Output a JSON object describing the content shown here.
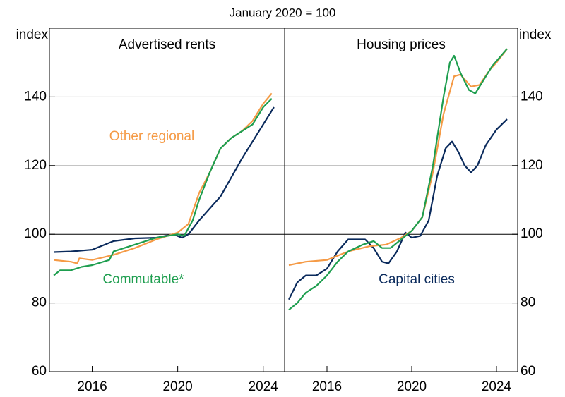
{
  "subtitle": "January 2020 = 100",
  "chart_data": [
    {
      "type": "line",
      "title": "Advertised rents",
      "ylabel": "index",
      "xlim": [
        2014,
        2025
      ],
      "xticks": [
        2016,
        2020,
        2024
      ],
      "ylim": [
        60,
        160
      ],
      "yticks": [
        60,
        80,
        100,
        120,
        140
      ],
      "grid": true,
      "baseline": 100,
      "series": [
        {
          "color": "#0a2a5c",
          "x": [
            2014.2,
            2015,
            2016,
            2017,
            2018,
            2019,
            2019.8,
            2020.2,
            2020.5,
            2021,
            2022,
            2023,
            2024,
            2024.5
          ],
          "values": [
            94.8,
            95,
            95.5,
            98,
            98.8,
            99,
            100,
            99,
            100,
            104,
            111,
            122,
            132,
            137
          ]
        },
        {
          "name": "Other regional",
          "color": "#f59a45",
          "x": [
            2014.2,
            2015,
            2015.3,
            2015.4,
            2016,
            2017,
            2018,
            2019,
            2020,
            2020.5,
            2021,
            2021.5,
            2022,
            2022.5,
            2023,
            2023.5,
            2024,
            2024.4
          ],
          "values": [
            92.5,
            92,
            91.5,
            93,
            92.5,
            94,
            96,
            98.5,
            100.5,
            103,
            112,
            118,
            125,
            128,
            130,
            133,
            138,
            141
          ]
        },
        {
          "name": "Commutable*",
          "color": "#1e9e4f",
          "x": [
            2014.2,
            2014.5,
            2015,
            2015.5,
            2016,
            2016.8,
            2017,
            2018,
            2019,
            2020,
            2020.3,
            2020.7,
            2021,
            2021.5,
            2022,
            2022.5,
            2023,
            2023.5,
            2024,
            2024.4
          ],
          "values": [
            88,
            89.5,
            89.5,
            90.5,
            91,
            92.5,
            95,
            97,
            99,
            100,
            99.5,
            104,
            110,
            118,
            125,
            128,
            130,
            132,
            137,
            139.5
          ]
        }
      ]
    },
    {
      "type": "line",
      "title": "Housing prices",
      "ylabel": "index",
      "xlim": [
        2014,
        2025
      ],
      "xticks": [
        2016,
        2020,
        2024
      ],
      "ylim": [
        60,
        160
      ],
      "yticks": [
        60,
        80,
        100,
        120,
        140
      ],
      "grid": true,
      "baseline": 100,
      "series": [
        {
          "name": "Capital cities",
          "color": "#0a2a5c",
          "x": [
            2014.2,
            2014.6,
            2015,
            2015.5,
            2016,
            2016.5,
            2017,
            2017.8,
            2018.2,
            2018.6,
            2018.9,
            2019.3,
            2019.7,
            2020,
            2020.4,
            2020.8,
            2021.2,
            2021.6,
            2021.9,
            2022.2,
            2022.5,
            2022.8,
            2023.1,
            2023.5,
            2024,
            2024.5
          ],
          "values": [
            81,
            86,
            88,
            88,
            90,
            95,
            98.5,
            98.5,
            96,
            92,
            91.5,
            95,
            100.5,
            99,
            99.5,
            104,
            117,
            125,
            127,
            124,
            120,
            118,
            120,
            126,
            130.5,
            133.5
          ]
        },
        {
          "color": "#f59a45",
          "x": [
            2014.2,
            2015,
            2016,
            2017,
            2018,
            2018.8,
            2019.5,
            2020,
            2020.5,
            2021,
            2021.5,
            2022,
            2022.3,
            2022.8,
            2023.2,
            2023.7,
            2024,
            2024.5
          ],
          "values": [
            91,
            92,
            92.5,
            95,
            96.5,
            97,
            99,
            101,
            105,
            118,
            135,
            146,
            146.5,
            143,
            143.5,
            148,
            150,
            154
          ]
        },
        {
          "color": "#1e9e4f",
          "x": [
            2014.2,
            2014.6,
            2015,
            2015.5,
            2016,
            2016.5,
            2017,
            2017.7,
            2018.2,
            2018.6,
            2019,
            2019.5,
            2020,
            2020.5,
            2021,
            2021.5,
            2021.8,
            2022,
            2022.3,
            2022.7,
            2023,
            2023.4,
            2023.8,
            2024.5
          ],
          "values": [
            78,
            80,
            83,
            85,
            88,
            92,
            95,
            97,
            98,
            96,
            96,
            98.5,
            101,
            105,
            120,
            140,
            150,
            152,
            147,
            142,
            141,
            145,
            149,
            154
          ]
        }
      ]
    }
  ]
}
